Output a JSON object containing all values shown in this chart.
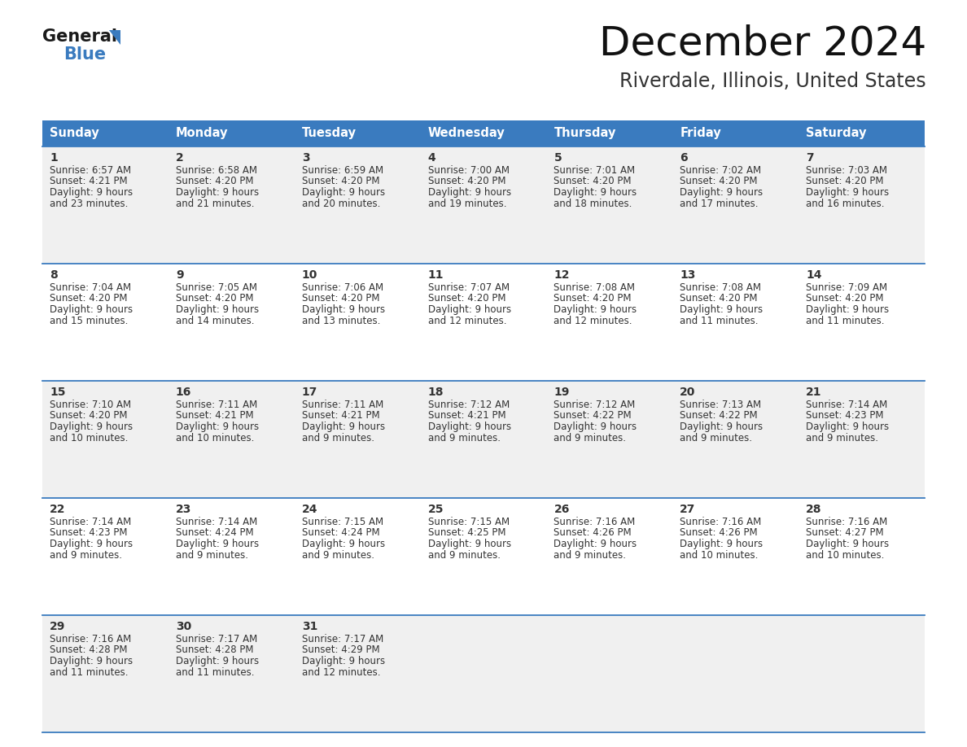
{
  "title": "December 2024",
  "subtitle": "Riverdale, Illinois, United States",
  "header_bg_color": "#3a7bbf",
  "header_text_color": "#ffffff",
  "cell_bg_color_odd": "#f0f0f0",
  "cell_bg_color_even": "#ffffff",
  "text_color": "#333333",
  "border_color": "#3a7bbf",
  "days_of_week": [
    "Sunday",
    "Monday",
    "Tuesday",
    "Wednesday",
    "Thursday",
    "Friday",
    "Saturday"
  ],
  "weeks": [
    [
      {
        "day": "1",
        "sunrise": "6:57 AM",
        "sunset": "4:21 PM",
        "daylight": "9 hours and 23 minutes."
      },
      {
        "day": "2",
        "sunrise": "6:58 AM",
        "sunset": "4:20 PM",
        "daylight": "9 hours and 21 minutes."
      },
      {
        "day": "3",
        "sunrise": "6:59 AM",
        "sunset": "4:20 PM",
        "daylight": "9 hours and 20 minutes."
      },
      {
        "day": "4",
        "sunrise": "7:00 AM",
        "sunset": "4:20 PM",
        "daylight": "9 hours and 19 minutes."
      },
      {
        "day": "5",
        "sunrise": "7:01 AM",
        "sunset": "4:20 PM",
        "daylight": "9 hours and 18 minutes."
      },
      {
        "day": "6",
        "sunrise": "7:02 AM",
        "sunset": "4:20 PM",
        "daylight": "9 hours and 17 minutes."
      },
      {
        "day": "7",
        "sunrise": "7:03 AM",
        "sunset": "4:20 PM",
        "daylight": "9 hours and 16 minutes."
      }
    ],
    [
      {
        "day": "8",
        "sunrise": "7:04 AM",
        "sunset": "4:20 PM",
        "daylight": "9 hours and 15 minutes."
      },
      {
        "day": "9",
        "sunrise": "7:05 AM",
        "sunset": "4:20 PM",
        "daylight": "9 hours and 14 minutes."
      },
      {
        "day": "10",
        "sunrise": "7:06 AM",
        "sunset": "4:20 PM",
        "daylight": "9 hours and 13 minutes."
      },
      {
        "day": "11",
        "sunrise": "7:07 AM",
        "sunset": "4:20 PM",
        "daylight": "9 hours and 12 minutes."
      },
      {
        "day": "12",
        "sunrise": "7:08 AM",
        "sunset": "4:20 PM",
        "daylight": "9 hours and 12 minutes."
      },
      {
        "day": "13",
        "sunrise": "7:08 AM",
        "sunset": "4:20 PM",
        "daylight": "9 hours and 11 minutes."
      },
      {
        "day": "14",
        "sunrise": "7:09 AM",
        "sunset": "4:20 PM",
        "daylight": "9 hours and 11 minutes."
      }
    ],
    [
      {
        "day": "15",
        "sunrise": "7:10 AM",
        "sunset": "4:20 PM",
        "daylight": "9 hours and 10 minutes."
      },
      {
        "day": "16",
        "sunrise": "7:11 AM",
        "sunset": "4:21 PM",
        "daylight": "9 hours and 10 minutes."
      },
      {
        "day": "17",
        "sunrise": "7:11 AM",
        "sunset": "4:21 PM",
        "daylight": "9 hours and 9 minutes."
      },
      {
        "day": "18",
        "sunrise": "7:12 AM",
        "sunset": "4:21 PM",
        "daylight": "9 hours and 9 minutes."
      },
      {
        "day": "19",
        "sunrise": "7:12 AM",
        "sunset": "4:22 PM",
        "daylight": "9 hours and 9 minutes."
      },
      {
        "day": "20",
        "sunrise": "7:13 AM",
        "sunset": "4:22 PM",
        "daylight": "9 hours and 9 minutes."
      },
      {
        "day": "21",
        "sunrise": "7:14 AM",
        "sunset": "4:23 PM",
        "daylight": "9 hours and 9 minutes."
      }
    ],
    [
      {
        "day": "22",
        "sunrise": "7:14 AM",
        "sunset": "4:23 PM",
        "daylight": "9 hours and 9 minutes."
      },
      {
        "day": "23",
        "sunrise": "7:14 AM",
        "sunset": "4:24 PM",
        "daylight": "9 hours and 9 minutes."
      },
      {
        "day": "24",
        "sunrise": "7:15 AM",
        "sunset": "4:24 PM",
        "daylight": "9 hours and 9 minutes."
      },
      {
        "day": "25",
        "sunrise": "7:15 AM",
        "sunset": "4:25 PM",
        "daylight": "9 hours and 9 minutes."
      },
      {
        "day": "26",
        "sunrise": "7:16 AM",
        "sunset": "4:26 PM",
        "daylight": "9 hours and 9 minutes."
      },
      {
        "day": "27",
        "sunrise": "7:16 AM",
        "sunset": "4:26 PM",
        "daylight": "9 hours and 10 minutes."
      },
      {
        "day": "28",
        "sunrise": "7:16 AM",
        "sunset": "4:27 PM",
        "daylight": "9 hours and 10 minutes."
      }
    ],
    [
      {
        "day": "29",
        "sunrise": "7:16 AM",
        "sunset": "4:28 PM",
        "daylight": "9 hours and 11 minutes."
      },
      {
        "day": "30",
        "sunrise": "7:17 AM",
        "sunset": "4:28 PM",
        "daylight": "9 hours and 11 minutes."
      },
      {
        "day": "31",
        "sunrise": "7:17 AM",
        "sunset": "4:29 PM",
        "daylight": "9 hours and 12 minutes."
      },
      null,
      null,
      null,
      null
    ]
  ],
  "fig_width": 11.88,
  "fig_height": 9.18,
  "dpi": 100
}
